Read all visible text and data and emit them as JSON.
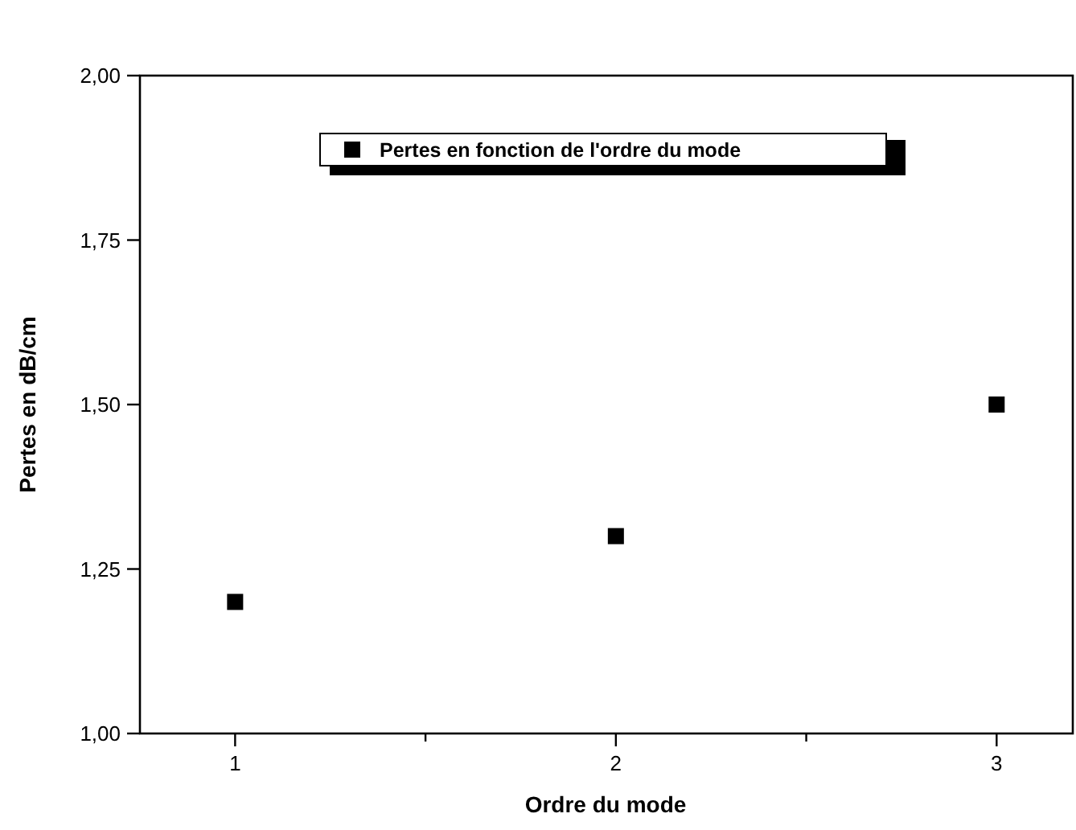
{
  "chart_data": {
    "type": "scatter",
    "xlabel": "Ordre du mode",
    "ylabel": "Pertes en dB/cm",
    "xlim": [
      0.75,
      3.2
    ],
    "xticks": [
      1,
      {
        "value": 1.5,
        "label": null
      },
      2,
      {
        "value": 2.5,
        "label": null
      },
      3
    ],
    "ylim": [
      1,
      2
    ],
    "yticks": [
      {
        "value": 1,
        "label": "1,00"
      },
      {
        "value": 1.25,
        "label": "1,25"
      },
      {
        "value": 1.5,
        "label": "1,50"
      },
      {
        "value": 1.75,
        "label": "1,75"
      },
      {
        "value": 2,
        "label": "2,00"
      }
    ],
    "series": [
      {
        "name": "Pertes en fonction de l'ordre du mode",
        "color": "#000000",
        "x": [
          1,
          2,
          3
        ],
        "values": [
          1.2,
          1.3,
          1.5
        ]
      }
    ],
    "marker": "square",
    "legend": "top",
    "grid": false
  }
}
